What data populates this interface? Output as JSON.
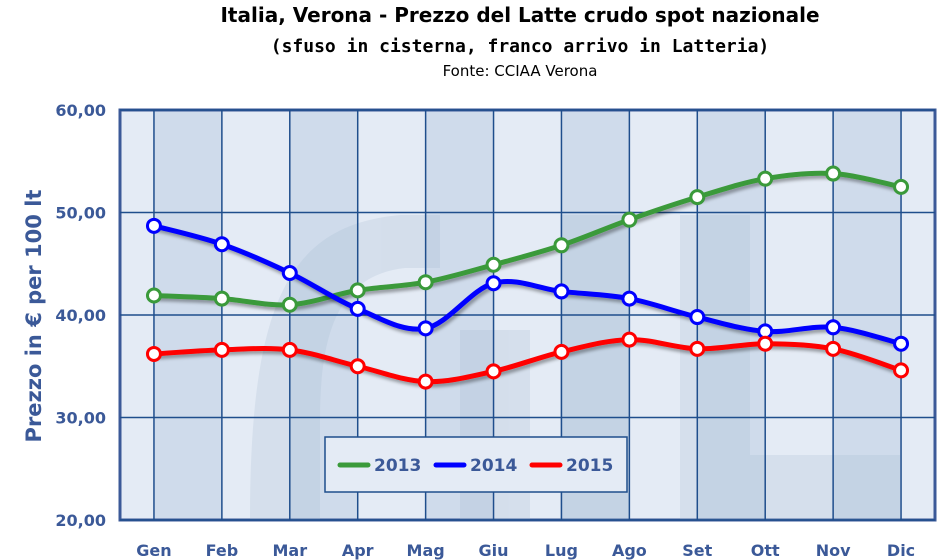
{
  "chart_data": {
    "type": "line",
    "title": "Italia, Verona - Prezzo del Latte crudo spot nazionale",
    "subtitle": "(sfuso in cisterna, franco arrivo in Latteria)",
    "source": "Fonte: CCIAA Verona",
    "xlabel": "",
    "ylabel": "Prezzo in € per 100 lt",
    "categories": [
      "Gen",
      "Feb",
      "Mar",
      "Apr",
      "Mag",
      "Giu",
      "Lug",
      "Ago",
      "Set",
      "Ott",
      "Nov",
      "Dic"
    ],
    "ylim": [
      20,
      60
    ],
    "yticks": [
      "20,00",
      "30,00",
      "40,00",
      "50,00",
      "60,00"
    ],
    "grid": true,
    "legend_placement": "bottom-center",
    "series": [
      {
        "name": "2013",
        "color": "#3a9a3a",
        "values": [
          41.9,
          41.6,
          41.0,
          42.4,
          43.2,
          44.9,
          46.8,
          49.3,
          51.5,
          53.3,
          53.8,
          52.5
        ]
      },
      {
        "name": "2014",
        "color": "#0000ff",
        "values": [
          48.7,
          46.9,
          44.1,
          40.6,
          38.7,
          43.1,
          42.3,
          41.6,
          39.8,
          38.4,
          38.8,
          37.2
        ]
      },
      {
        "name": "2015",
        "color": "#ff0000",
        "values": [
          36.2,
          36.6,
          36.6,
          35.0,
          33.5,
          34.5,
          36.4,
          37.6,
          36.7,
          37.2,
          36.7,
          34.6
        ]
      }
    ]
  }
}
